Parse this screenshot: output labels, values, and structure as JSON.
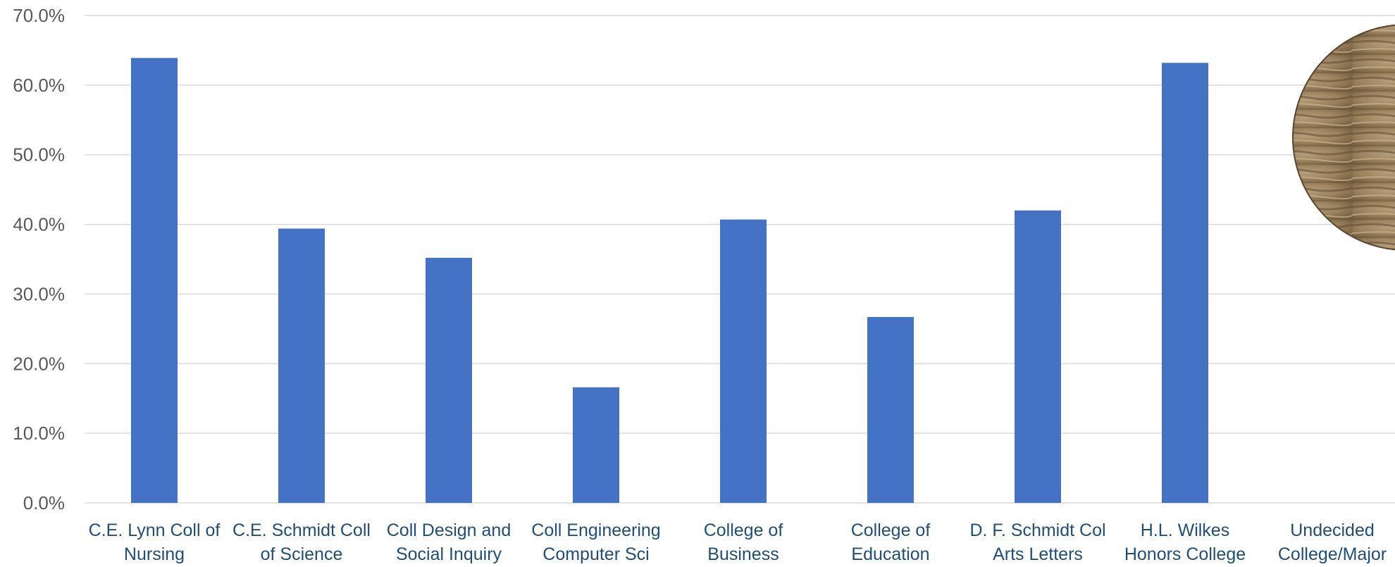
{
  "chart_data": {
    "type": "bar",
    "categories": [
      [
        "C.E. Lynn Coll of",
        "Nursing"
      ],
      [
        "C.E. Schmidt Coll",
        "of Science"
      ],
      [
        "Coll Design and",
        "Social Inquiry"
      ],
      [
        "Coll Engineering",
        "Computer Sci"
      ],
      [
        "College of",
        "Business"
      ],
      [
        "College of",
        "Education"
      ],
      [
        "D. F. Schmidt Col",
        "Arts Letters"
      ],
      [
        "H.L. Wilkes",
        "Honors College"
      ],
      [
        "Undecided",
        "College/Major"
      ]
    ],
    "values": [
      63.9,
      39.4,
      35.2,
      16.6,
      40.7,
      26.7,
      42.0,
      63.2,
      null
    ],
    "yticks": [
      "0.0%",
      "10.0%",
      "20.0%",
      "30.0%",
      "40.0%",
      "50.0%",
      "60.0%",
      "70.0%"
    ],
    "ylim": [
      0,
      70
    ],
    "unit": "percent",
    "grid": true,
    "legend": "none",
    "colors": {
      "bar": "#4472C4",
      "grid": "#D9D9D9",
      "tick_label": "#595959",
      "category_label": "#1F4E79"
    }
  },
  "decoration": {
    "image_icon": "sandstone-rock-photo"
  }
}
